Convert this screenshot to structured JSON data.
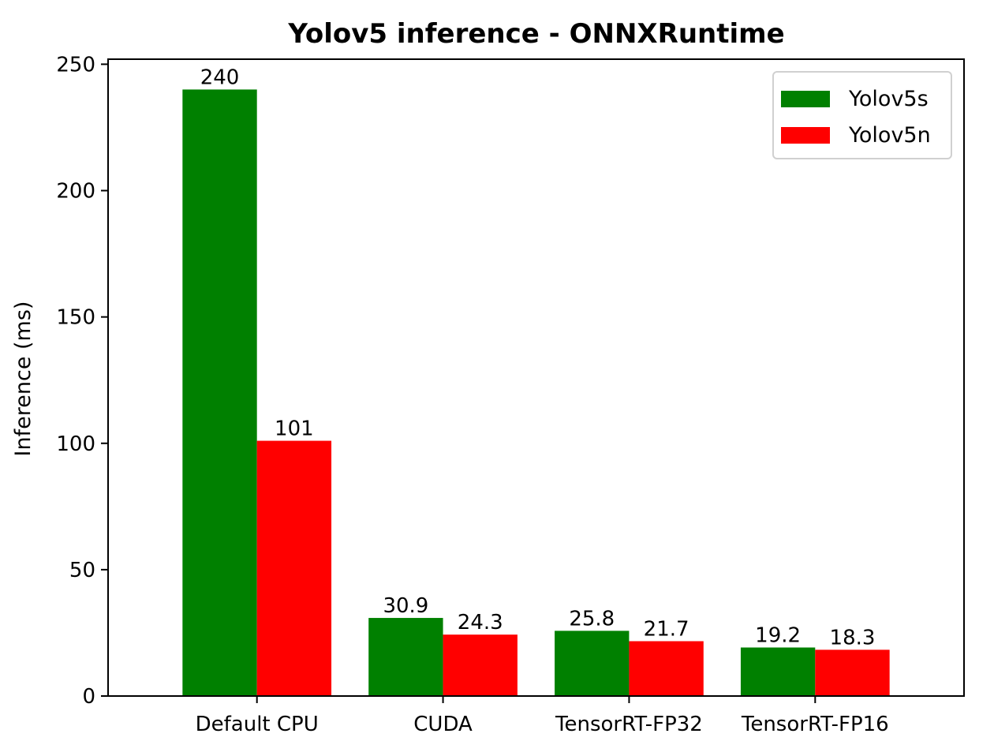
{
  "chart_data": {
    "type": "bar",
    "title": "Yolov5 inference - ONNXRuntime",
    "xlabel": "",
    "ylabel": "Inference (ms)",
    "categories": [
      "Default CPU",
      "CUDA",
      "TensorRT-FP32",
      "TensorRT-FP16"
    ],
    "series": [
      {
        "name": "Yolov5s",
        "color": "#008000",
        "values": [
          240,
          30.9,
          25.8,
          19.2
        ],
        "labels": [
          "240",
          "30.9",
          "25.8",
          "19.2"
        ]
      },
      {
        "name": "Yolov5n",
        "color": "#ff0000",
        "values": [
          101,
          24.3,
          21.7,
          18.3
        ],
        "labels": [
          "101",
          "24.3",
          "21.7",
          "18.3"
        ]
      }
    ],
    "ylim": [
      0,
      252
    ],
    "yticks": [
      0,
      50,
      100,
      150,
      200,
      250
    ],
    "grid": false,
    "legend_position": "top-right"
  }
}
